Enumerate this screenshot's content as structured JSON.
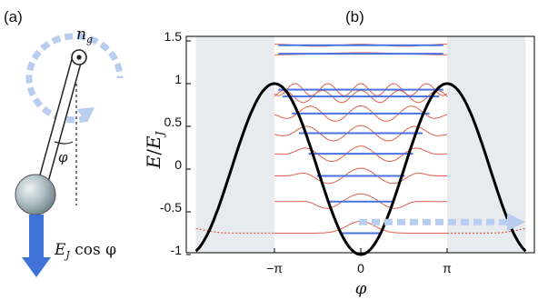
{
  "panel_a": {
    "label": "(a)",
    "ng_label": "n",
    "ng_sub": "g",
    "angle_label": "φ",
    "force_label_E": "E",
    "force_label_sub": "J",
    "force_label_rest": " cos φ",
    "colors": {
      "arrow_blue": "#3f73d6",
      "dashed_circle": "#b9cdf0",
      "bob": "#aebfc3"
    },
    "icons": [
      "pendulum-rod",
      "pivot",
      "bob-sphere",
      "dashed-rotation-arrow",
      "force-arrow"
    ]
  },
  "panel_b": {
    "label": "(b)",
    "ylabel_E": "E",
    "ylabel_sep": "/",
    "ylabel_EJ": "E",
    "ylabel_EJ_sub": "J",
    "xlabel": "φ",
    "yticks": [
      "1.5",
      "1",
      "0.5",
      "0",
      "-0.5",
      "-1"
    ],
    "xticks": [
      "−π",
      "0",
      "π"
    ],
    "colors": {
      "potential": "#000000",
      "levels": "#4a72e0",
      "wavefunctions": "#e0604d",
      "shade": "#e7eaef",
      "tunnel_arrow": "#b9cdf0"
    }
  },
  "chart_data": {
    "type": "line",
    "potential": {
      "formula": "-cos(phi)",
      "x_range": [
        -6.0,
        6.0
      ]
    },
    "ylim": [
      -1.05,
      1.5
    ],
    "xlim": [
      -6.0,
      6.0
    ],
    "shaded_regions": [
      [
        -6.0,
        -3.1416
      ],
      [
        3.1416,
        6.0
      ]
    ],
    "energy_levels": [
      -0.75,
      -0.38,
      -0.08,
      0.18,
      0.42,
      0.65,
      0.85,
      0.93,
      1.35,
      1.45
    ],
    "level_half_widths": [
      0.75,
      1.2,
      1.6,
      1.9,
      2.25,
      2.5,
      2.85,
      3.0,
      3.0,
      3.0
    ],
    "wavefunction_nodes": [
      0,
      1,
      2,
      3,
      4,
      5,
      6,
      7,
      8,
      9
    ]
  }
}
